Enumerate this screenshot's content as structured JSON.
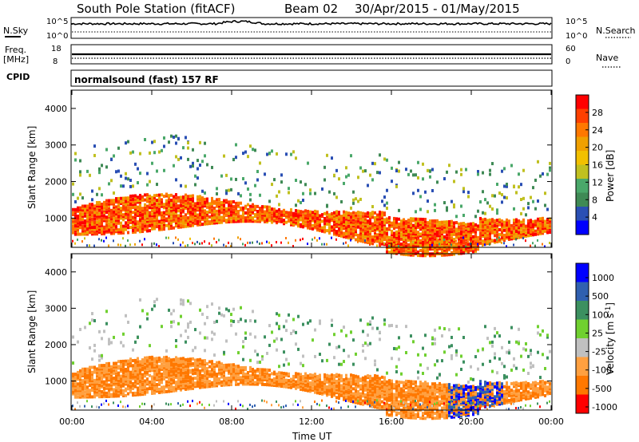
{
  "header": {
    "station": "South Pole Station (fitACF)",
    "beam": "Beam 02",
    "dates": "30/Apr/2015 - 01/May/2015"
  },
  "top_panels": {
    "nsky_label": "N.Sky",
    "nsky_ticks": [
      "10^5",
      "10^0"
    ],
    "nsearch_label": "N.Search",
    "nsearch_ticks": [
      "10^5",
      "10^0"
    ],
    "freq_label": "Freq.",
    "freq_unit": "[MHz]",
    "freq_ticks": [
      "18",
      "8"
    ],
    "nave_label": "Nave",
    "nave_ticks": [
      "60",
      "0"
    ],
    "cpid_label": "CPID",
    "cpid_text": "normalsound (fast) 157 RF"
  },
  "colors": {
    "power": [
      "#0000ff",
      "#2a4fb4",
      "#3f8a55",
      "#4aa86a",
      "#c0c020",
      "#f2c000",
      "#f0a000",
      "#ff7800",
      "#ff4000",
      "#ff0000"
    ],
    "velocity": [
      "#ff0000",
      "#ff7800",
      "#ffa040",
      "#c0c0c0",
      "#70d030",
      "#3c9060",
      "#3060b0",
      "#0000ff"
    ]
  },
  "chart_data": [
    {
      "type": "heatmap",
      "title": "Power",
      "ylabel": "Slant Range [km]",
      "xlabel": "",
      "x_ticks": [
        "00:00",
        "04:00",
        "08:00",
        "12:00",
        "16:00",
        "20:00",
        "00:00"
      ],
      "y_ticks": [
        "1000",
        "2000",
        "3000",
        "4000"
      ],
      "ylim": [
        200,
        4500
      ],
      "colorbar": {
        "label": "Power [dB]",
        "ticks": [
          "4",
          "8",
          "12",
          "16",
          "20",
          "24",
          "28"
        ],
        "range": [
          0,
          30
        ]
      }
    },
    {
      "type": "heatmap",
      "title": "Velocity",
      "ylabel": "Slant Range [km]",
      "xlabel": "Time UT",
      "x_ticks": [
        "00:00",
        "04:00",
        "08:00",
        "12:00",
        "16:00",
        "20:00",
        "00:00"
      ],
      "y_ticks": [
        "1000",
        "2000",
        "3000",
        "4000"
      ],
      "ylim": [
        200,
        4500
      ],
      "colorbar": {
        "label": "Velocity [m s^-1]",
        "ticks": [
          "1000",
          "500",
          "100",
          "25",
          "-25",
          "-100",
          "-500",
          "-1000"
        ]
      }
    }
  ]
}
